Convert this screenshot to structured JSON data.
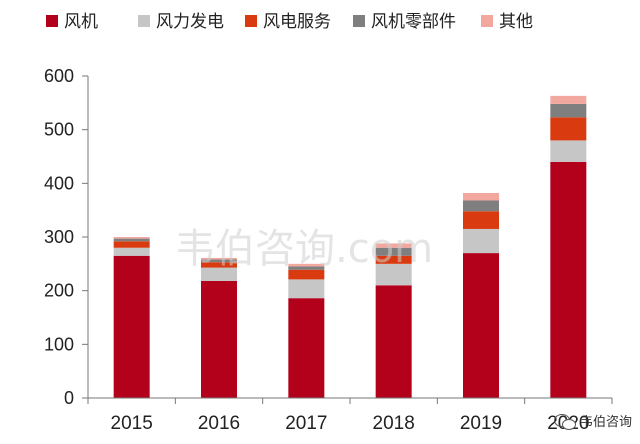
{
  "chart_data": {
    "type": "bar",
    "stacked": true,
    "categories": [
      "2015",
      "2016",
      "2017",
      "2018",
      "2019",
      "2020"
    ],
    "series": [
      {
        "name": "风机",
        "color": "#b3001b",
        "values": [
          265,
          218,
          186,
          210,
          270,
          440
        ]
      },
      {
        "name": "风力发电",
        "color": "#c6c6c6",
        "values": [
          15,
          25,
          35,
          40,
          45,
          40
        ]
      },
      {
        "name": "风电服务",
        "color": "#d93a0f",
        "values": [
          12,
          10,
          18,
          15,
          33,
          43
        ]
      },
      {
        "name": "风机零部件",
        "color": "#7f7f7f",
        "values": [
          5,
          5,
          6,
          15,
          20,
          25
        ]
      },
      {
        "name": "其他",
        "color": "#f2a89f",
        "values": [
          3,
          3,
          5,
          8,
          14,
          15
        ]
      }
    ],
    "yticks": [
      0,
      100,
      200,
      300,
      400,
      500,
      600
    ],
    "ylim": [
      0,
      600
    ],
    "grid": false,
    "legend_position": "top",
    "title": "",
    "xlabel": "",
    "ylabel": ""
  },
  "watermark": "韦伯咨询.com",
  "badge": {
    "icon": "wechat-icon",
    "text": "韦伯咨询"
  }
}
